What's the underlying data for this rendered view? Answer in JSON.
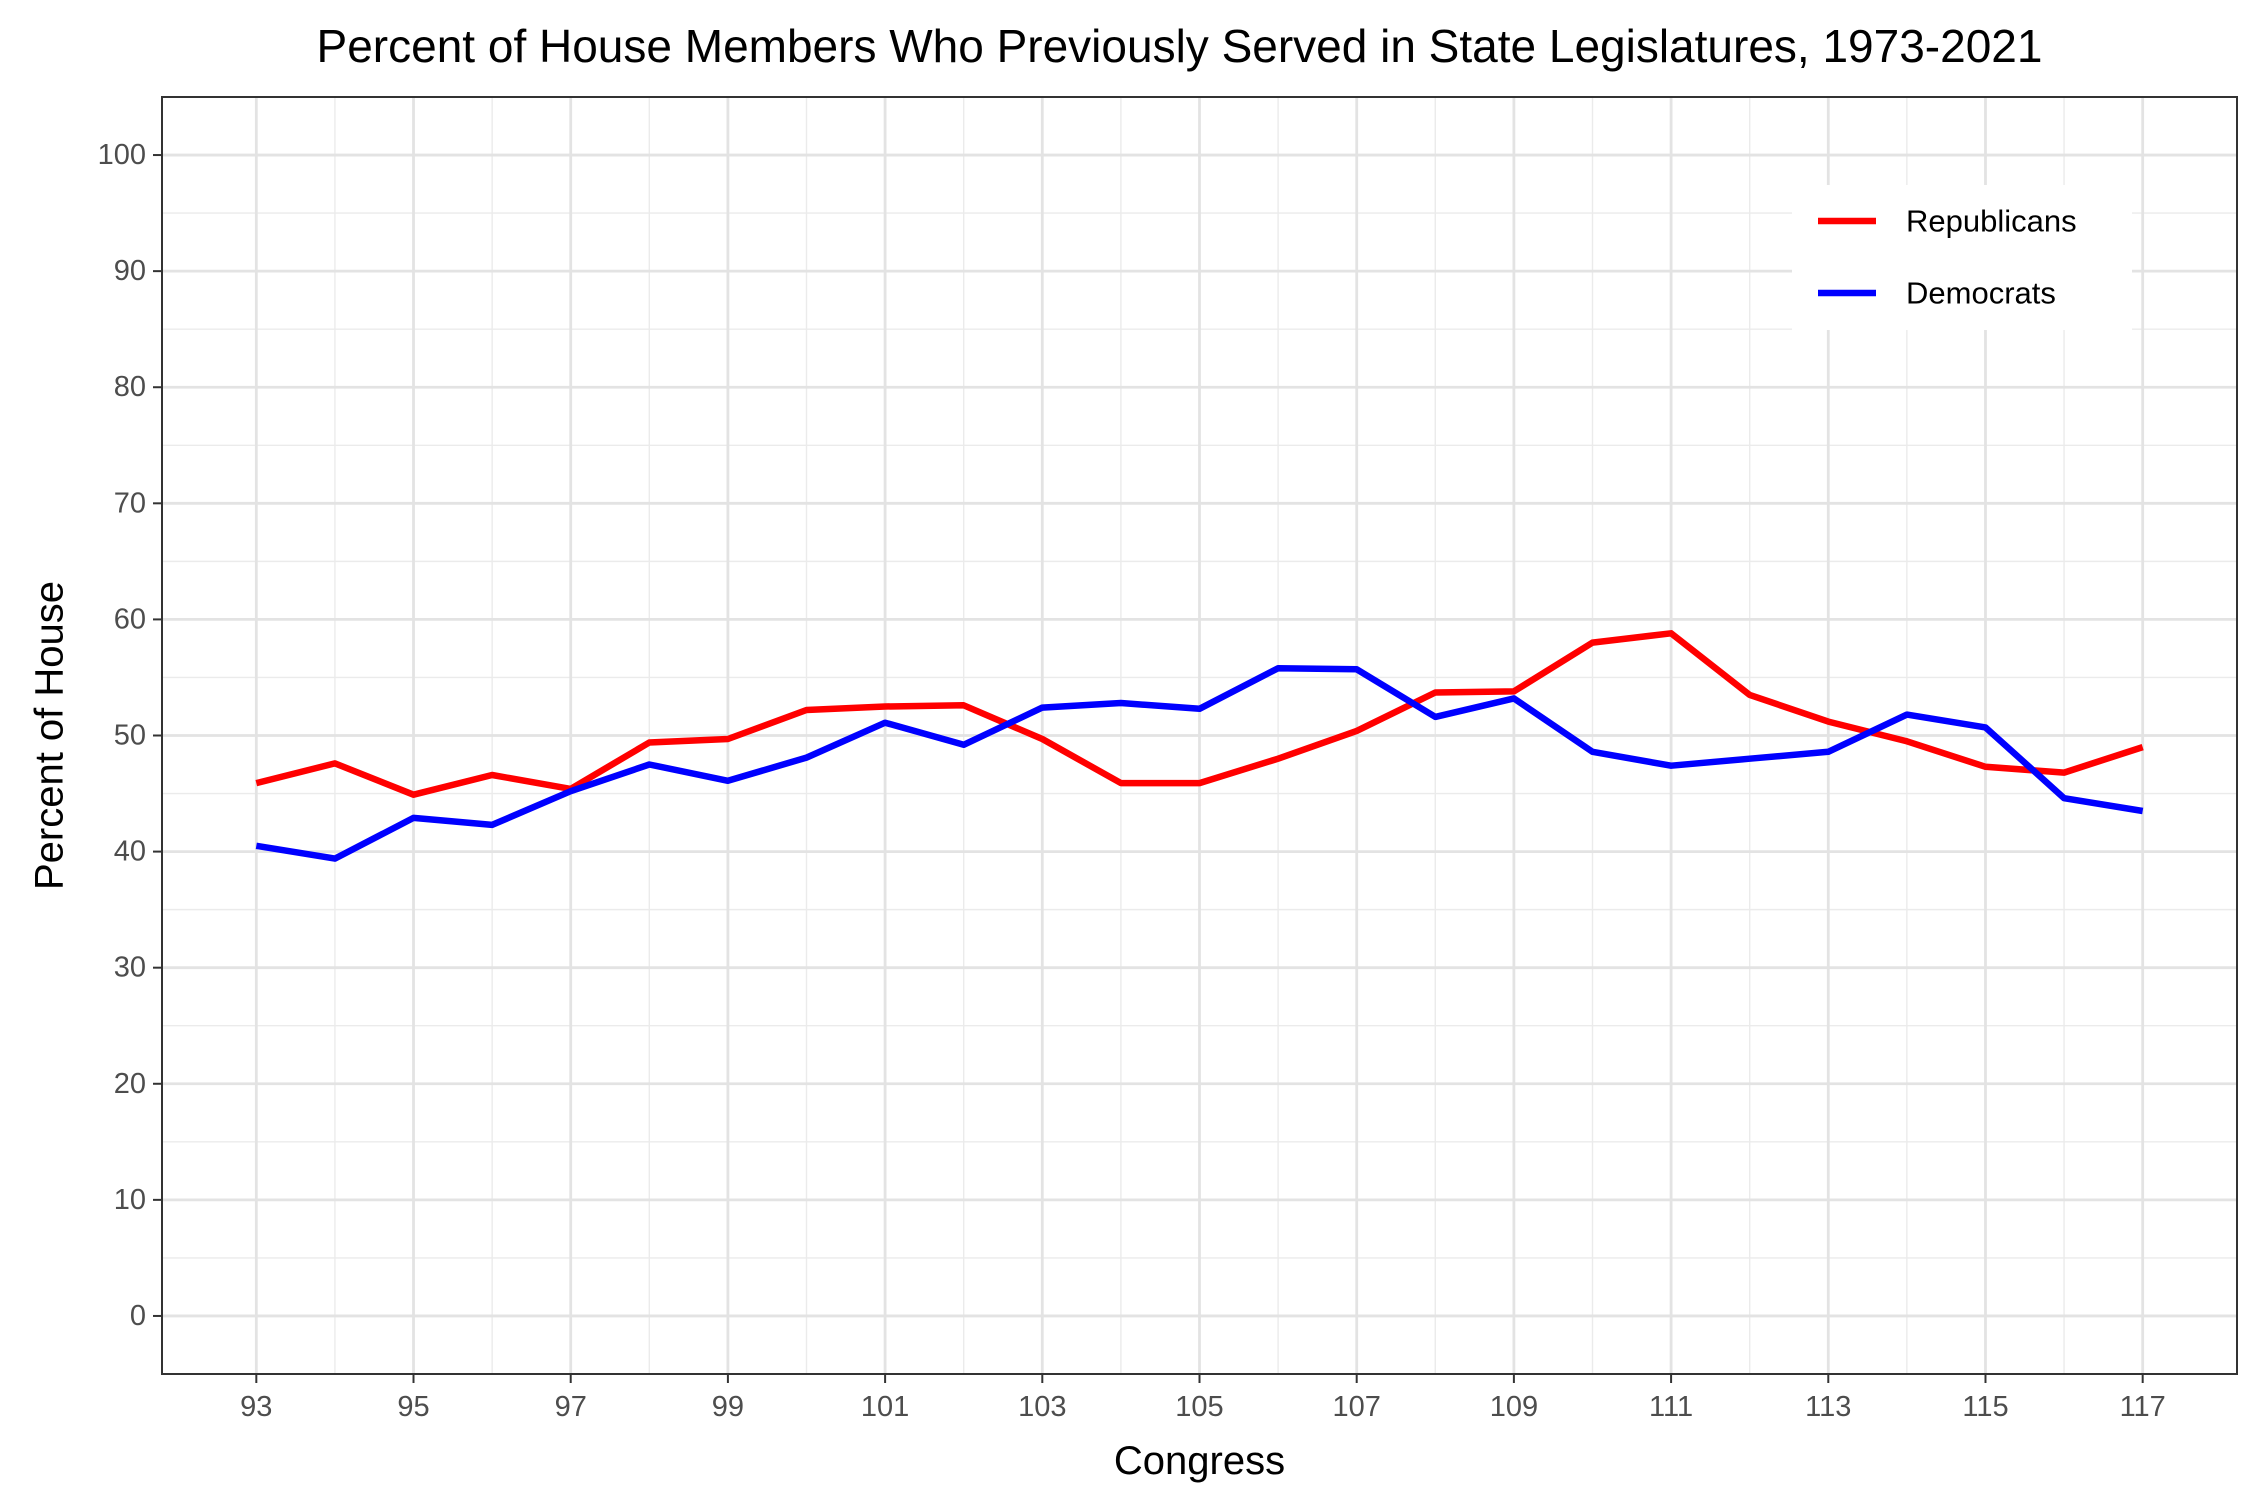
{
  "chart_data": {
    "type": "line",
    "title": "Percent of House Members Who Previously Served in State Legislatures, 1973-2021",
    "xlabel": "Congress",
    "ylabel": "Percent of House",
    "x": [
      93,
      94,
      95,
      96,
      97,
      98,
      99,
      100,
      101,
      102,
      103,
      104,
      105,
      106,
      107,
      108,
      109,
      110,
      111,
      112,
      113,
      114,
      115,
      116,
      117
    ],
    "x_ticks": [
      93,
      95,
      97,
      99,
      101,
      103,
      105,
      107,
      109,
      111,
      113,
      115,
      117
    ],
    "x_ticks_text": [
      "93",
      "95",
      "97",
      "99",
      "101",
      "103",
      "105",
      "107",
      "109",
      "111",
      "113",
      "115",
      "117"
    ],
    "xlim": [
      91.8,
      118.2
    ],
    "y_ticks": [
      0,
      10,
      20,
      30,
      40,
      50,
      60,
      70,
      80,
      90,
      100
    ],
    "y_ticks_text": [
      "0",
      "10",
      "20",
      "30",
      "40",
      "50",
      "60",
      "70",
      "80",
      "90",
      "100"
    ],
    "ylim": [
      -5,
      105
    ],
    "grid": true,
    "legend_position": "top-right",
    "series": [
      {
        "name": "Republicans",
        "color": "#ff0000",
        "values": [
          45.9,
          47.6,
          44.9,
          46.6,
          45.4,
          49.4,
          49.7,
          52.2,
          52.5,
          52.6,
          49.7,
          45.9,
          45.9,
          48.0,
          50.4,
          53.7,
          53.8,
          58.0,
          58.8,
          53.5,
          51.2,
          49.5,
          47.3,
          46.8,
          49.0
        ]
      },
      {
        "name": "Democrats",
        "color": "#0000ff",
        "values": [
          40.5,
          39.4,
          42.9,
          42.3,
          45.2,
          47.5,
          46.1,
          48.1,
          51.1,
          49.2,
          52.4,
          52.8,
          52.3,
          55.8,
          55.7,
          51.6,
          53.2,
          48.6,
          47.4,
          48.0,
          48.6,
          51.8,
          50.7,
          44.6,
          43.5
        ]
      }
    ]
  }
}
